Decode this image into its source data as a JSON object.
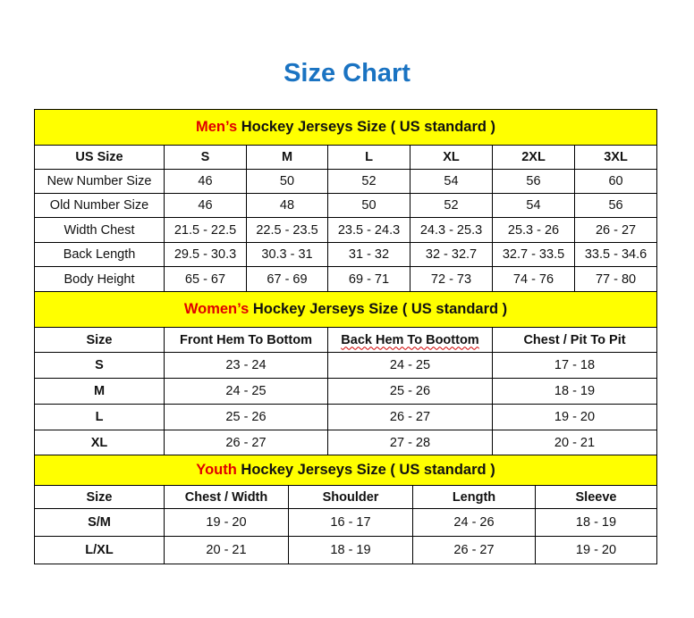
{
  "title": "Size Chart",
  "colors": {
    "title": "#1a73c2",
    "band": "#ffff00",
    "accent": "#e00000"
  },
  "men": {
    "prefix": "Men’s",
    "heading": " Hockey Jerseys Size ( US standard )",
    "headers": [
      "US Size",
      "S",
      "M",
      "L",
      "XL",
      "2XL",
      "3XL"
    ],
    "rows": [
      [
        "New Number Size",
        "46",
        "50",
        "52",
        "54",
        "56",
        "60"
      ],
      [
        "Old Number Size",
        "46",
        "48",
        "50",
        "52",
        "54",
        "56"
      ],
      [
        "Width Chest",
        "21.5 - 22.5",
        "22.5 - 23.5",
        "23.5 - 24.3",
        "24.3 - 25.3",
        "25.3 - 26",
        "26 - 27"
      ],
      [
        "Back Length",
        "29.5 - 30.3",
        "30.3 - 31",
        "31 - 32",
        "32 - 32.7",
        "32.7 - 33.5",
        "33.5 - 34.6"
      ],
      [
        "Body Height",
        "65 - 67",
        "67 - 69",
        "69 - 71",
        "72 - 73",
        "74 - 76",
        "77 - 80"
      ]
    ]
  },
  "women": {
    "prefix": "Women’s",
    "heading": " Hockey Jerseys Size ( US standard )",
    "headers": [
      "Size",
      "Front Hem To Bottom",
      "Back Hem To Boottom",
      "Chest / Pit To Pit"
    ],
    "rows": [
      [
        "S",
        "23 - 24",
        "24 - 25",
        "17 - 18"
      ],
      [
        "M",
        "24 - 25",
        "25 - 26",
        "18 - 19"
      ],
      [
        "L",
        "25 - 26",
        "26 - 27",
        "19 - 20"
      ],
      [
        "XL",
        "26 - 27",
        "27 - 28",
        "20 - 21"
      ]
    ]
  },
  "youth": {
    "prefix": "Youth",
    "heading": " Hockey Jerseys Size ( US standard )",
    "headers": [
      "Size",
      "Chest / Width",
      "Shoulder",
      "Length",
      "Sleeve"
    ],
    "rows": [
      [
        "S/M",
        "19 - 20",
        "16 - 17",
        "24 - 26",
        "18 - 19"
      ],
      [
        "L/XL",
        "20 - 21",
        "18 - 19",
        "26 - 27",
        "19 - 20"
      ]
    ]
  }
}
